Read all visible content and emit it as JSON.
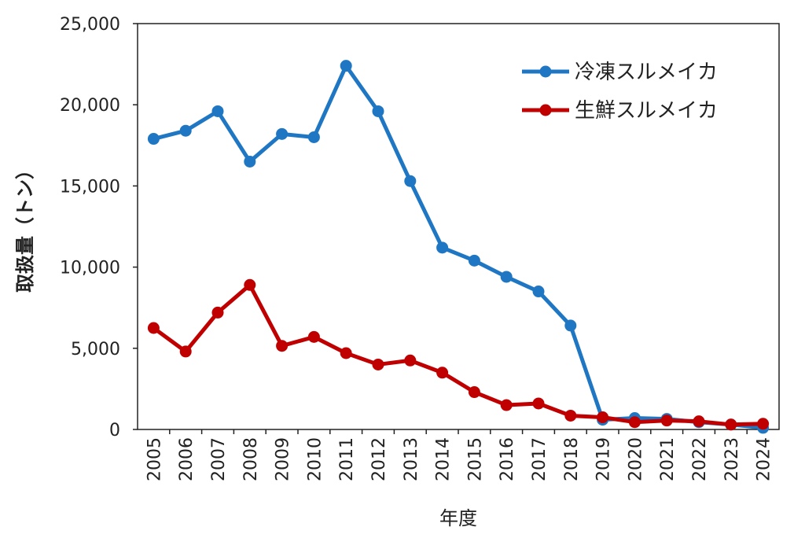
{
  "chart_data": {
    "type": "line",
    "title": "",
    "xlabel": "年度",
    "ylabel": "取扱量（トン）",
    "x": [
      "2005",
      "2006",
      "2007",
      "2008",
      "2009",
      "2010",
      "2011",
      "2012",
      "2013",
      "2014",
      "2015",
      "2016",
      "2017",
      "2018",
      "2019",
      "2020",
      "2021",
      "2022",
      "2023",
      "2024"
    ],
    "ylim": [
      0,
      25000
    ],
    "yticks": [
      0,
      5000,
      10000,
      15000,
      20000,
      25000
    ],
    "ytick_labels": [
      "0",
      "5,000",
      "10,000",
      "15,000",
      "20,000",
      "25,000"
    ],
    "grid": false,
    "legend_position": "top-right",
    "series": [
      {
        "name": "冷凍スルメイカ",
        "color": "#1f77c4",
        "values": [
          17900,
          18400,
          19600,
          16500,
          18200,
          18000,
          22400,
          19600,
          15300,
          11200,
          10400,
          9400,
          8500,
          6400,
          600,
          700,
          650,
          450,
          300,
          100
        ]
      },
      {
        "name": "生鮮スルメイカ",
        "color": "#c00000",
        "values": [
          6250,
          4800,
          7200,
          8900,
          5150,
          5700,
          4700,
          4000,
          4250,
          3500,
          2300,
          1500,
          1600,
          850,
          750,
          450,
          550,
          500,
          300,
          350
        ]
      }
    ]
  }
}
